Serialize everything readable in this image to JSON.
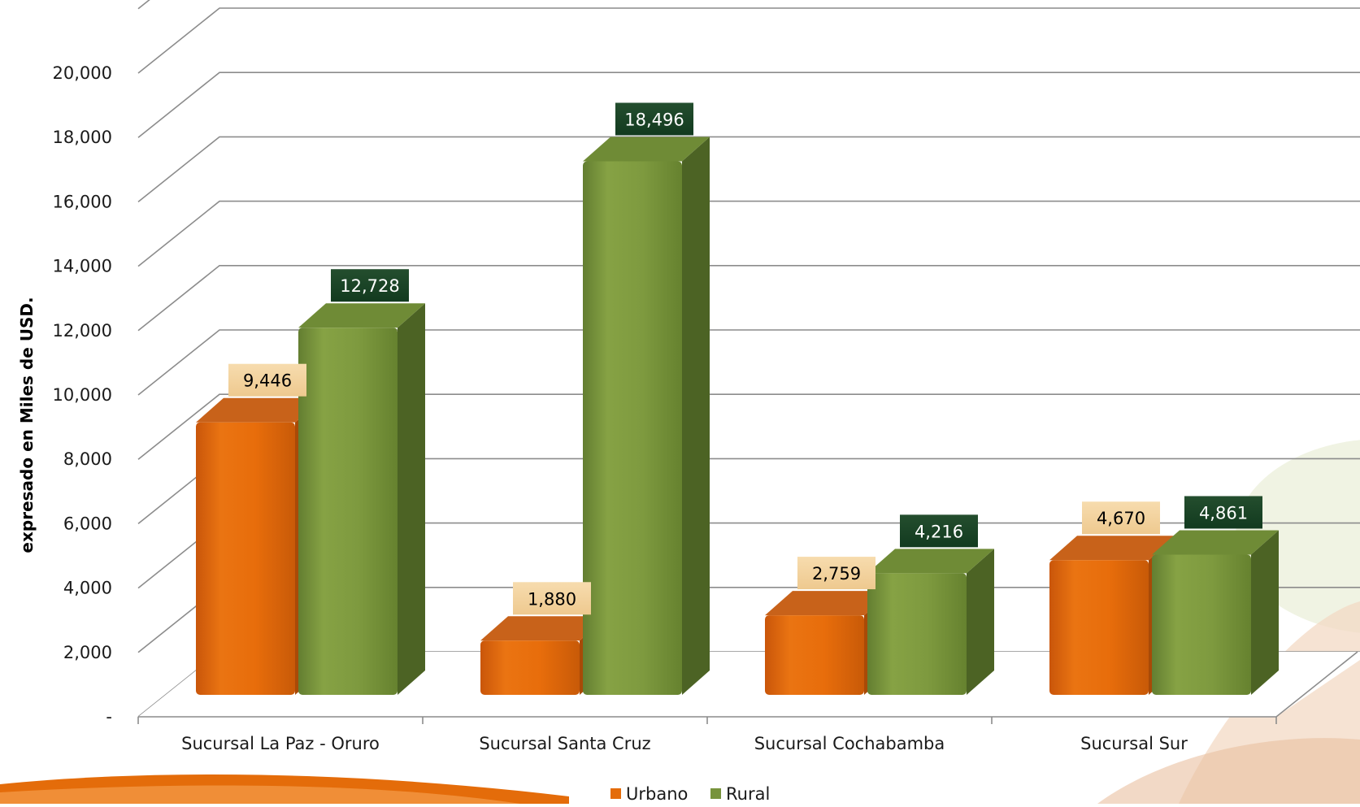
{
  "chart_data": {
    "type": "bar",
    "title": "",
    "xlabel": "",
    "ylabel": "expresado en Miles de USD.",
    "ylim": [
      0,
      20000
    ],
    "ytick_step": 2000,
    "ytick_labels": [
      "-",
      "2,000",
      "4,000",
      "6,000",
      "8,000",
      "10,000",
      "12,000",
      "14,000",
      "16,000",
      "18,000",
      "20,000"
    ],
    "categories": [
      "Sucursal La Paz - Oruro",
      "Sucursal Santa Cruz",
      "Sucursal Cochabamba",
      "Sucursal Sur"
    ],
    "series": [
      {
        "name": "Urbano",
        "values": [
          9446,
          1880,
          2759,
          4670
        ],
        "labels": [
          "9,446",
          "1,880",
          "2,759",
          "4,670"
        ],
        "color": "#e46c0a"
      },
      {
        "name": "Rural",
        "values": [
          12728,
          18496,
          4216,
          4861
        ],
        "labels": [
          "12,728",
          "18,496",
          "4,216",
          "4,861"
        ],
        "color": "#77933c"
      }
    ],
    "grid": true,
    "legend_position": "bottom",
    "style": "3d-clustered-column"
  }
}
